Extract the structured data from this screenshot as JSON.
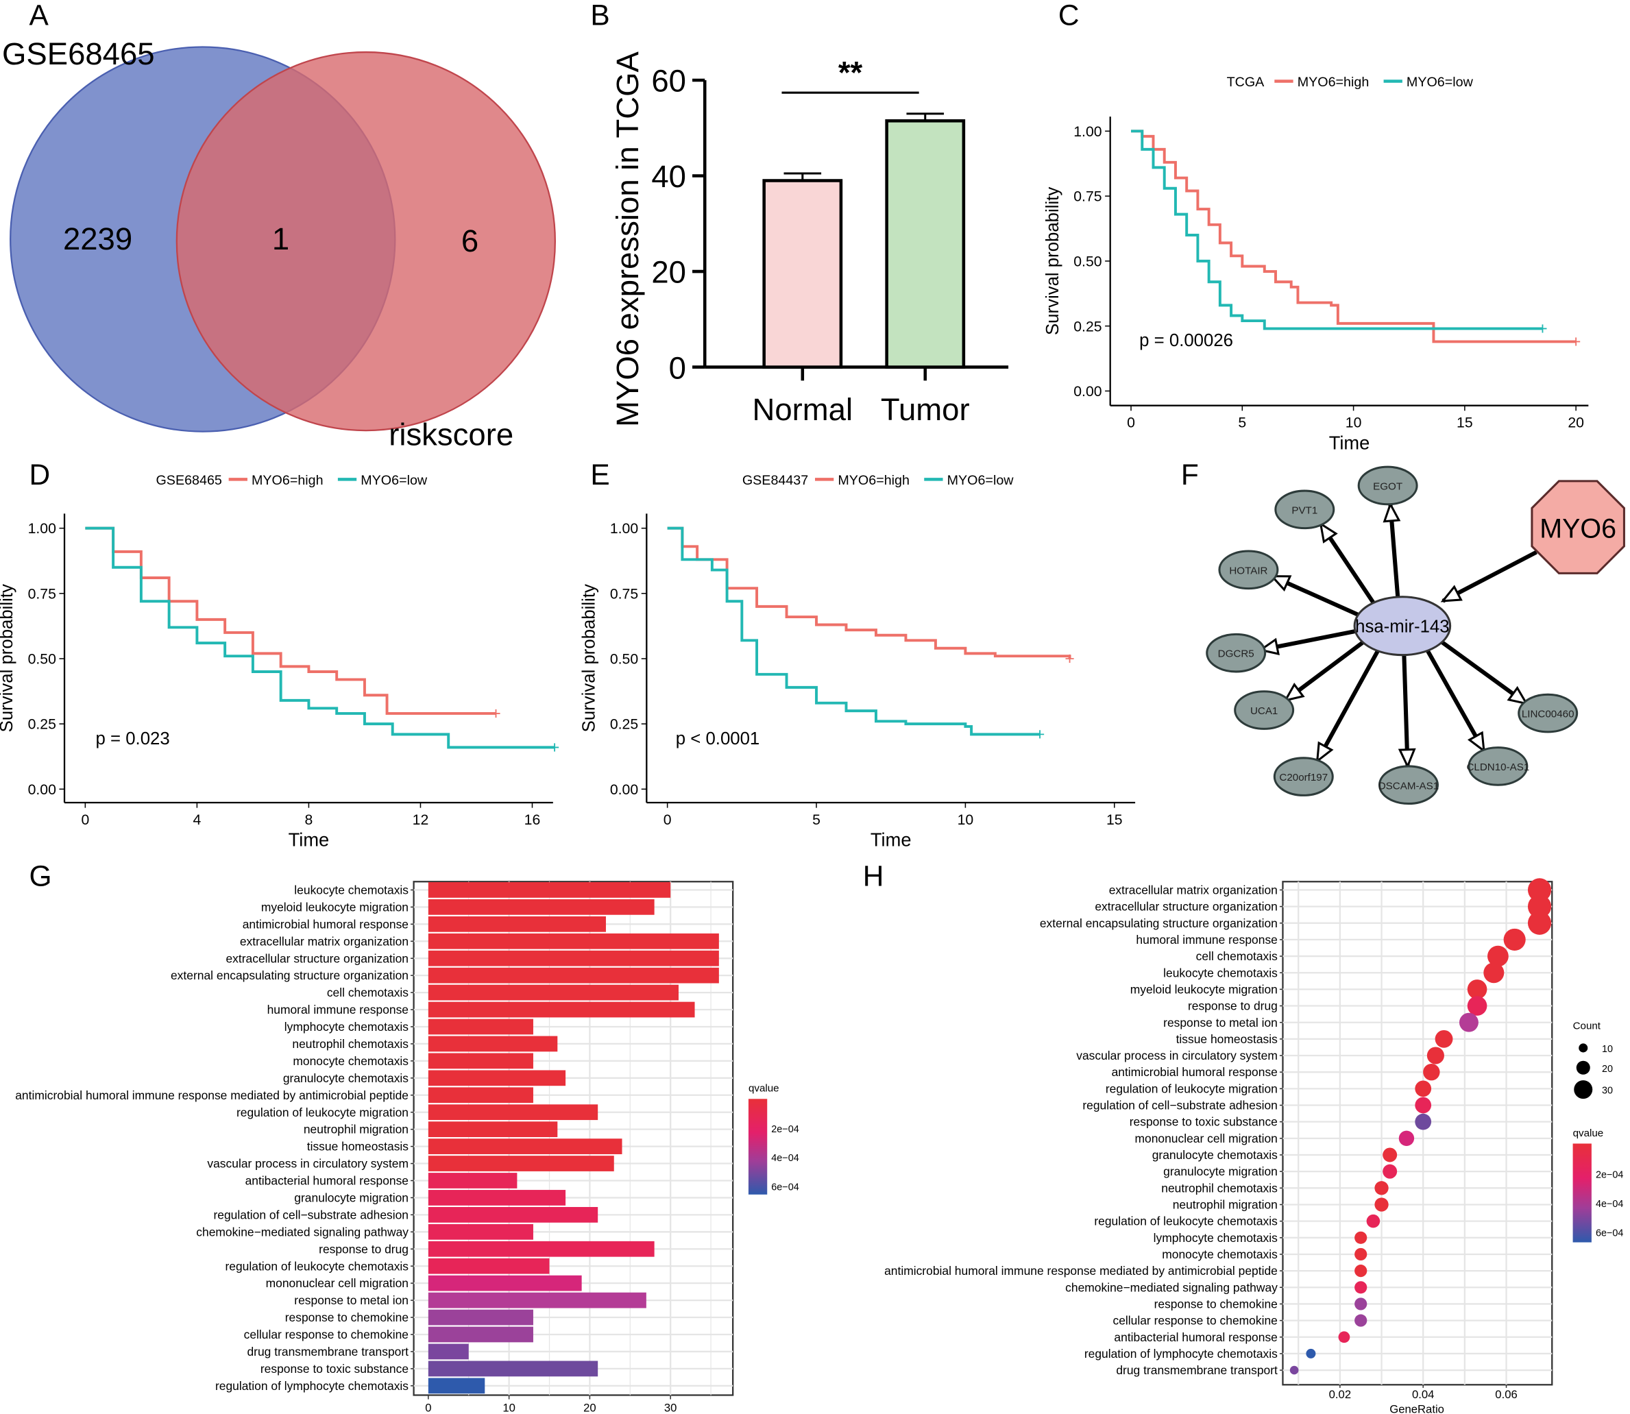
{
  "panel_labels": [
    "A",
    "B",
    "C",
    "D",
    "E",
    "F",
    "G",
    "H"
  ],
  "chart_data": [
    {
      "id": "A",
      "type": "venn",
      "sets": [
        {
          "name": "GSE68465",
          "only": 2239,
          "color": "#6a7fc4"
        },
        {
          "name": "riskscore",
          "only": 6,
          "color": "#d86a6e"
        }
      ],
      "intersection": 1
    },
    {
      "id": "B",
      "type": "bar",
      "ylabel": "MYO6 expression in TCGA",
      "categories": [
        "Normal",
        "Tumor"
      ],
      "values": [
        39,
        51.5
      ],
      "errors": [
        1.5,
        1.5
      ],
      "colors": [
        "#f9d6d6",
        "#c3e3bf"
      ],
      "ylim": [
        0,
        60
      ],
      "yticks": [
        "0",
        "20",
        "40",
        "60"
      ],
      "significance": "**"
    },
    {
      "id": "C",
      "type": "line",
      "subtype": "kaplan-meier",
      "legend_title": "TCGA",
      "series": [
        {
          "name": "MYO6=high",
          "color": "#ee7068",
          "points": [
            [
              0,
              1
            ],
            [
              0.5,
              0.98
            ],
            [
              1,
              0.93
            ],
            [
              1.5,
              0.88
            ],
            [
              2,
              0.82
            ],
            [
              2.5,
              0.77
            ],
            [
              3,
              0.7
            ],
            [
              3.5,
              0.64
            ],
            [
              4,
              0.57
            ],
            [
              4.5,
              0.52
            ],
            [
              5,
              0.48
            ],
            [
              6,
              0.46
            ],
            [
              6.5,
              0.42
            ],
            [
              7.2,
              0.4
            ],
            [
              7.5,
              0.34
            ],
            [
              9,
              0.33
            ],
            [
              9.3,
              0.26
            ],
            [
              13.6,
              0.26
            ],
            [
              13.6,
              0.19
            ],
            [
              20,
              0.19
            ]
          ]
        },
        {
          "name": "MYO6=low",
          "color": "#22b8b3",
          "points": [
            [
              0,
              1
            ],
            [
              0.5,
              0.93
            ],
            [
              1,
              0.86
            ],
            [
              1.5,
              0.78
            ],
            [
              2,
              0.68
            ],
            [
              2.5,
              0.6
            ],
            [
              3,
              0.5
            ],
            [
              3.5,
              0.42
            ],
            [
              4,
              0.33
            ],
            [
              4.5,
              0.29
            ],
            [
              5,
              0.27
            ],
            [
              6,
              0.24
            ],
            [
              18.5,
              0.24
            ]
          ]
        }
      ],
      "xlabel": "Time",
      "ylabel": "Survival probability",
      "xlim": [
        0,
        20
      ],
      "xticks": [
        "0",
        "5",
        "10",
        "15",
        "20"
      ],
      "ylim": [
        0,
        1
      ],
      "yticks": [
        "0.00",
        "0.25",
        "0.50",
        "0.75",
        "1.00"
      ],
      "pvalue": "p = 0.00026"
    },
    {
      "id": "D",
      "type": "line",
      "subtype": "kaplan-meier",
      "legend_title": "GSE68465",
      "series": [
        {
          "name": "MYO6=high",
          "color": "#ee7068",
          "points": [
            [
              0,
              1
            ],
            [
              1,
              0.91
            ],
            [
              2,
              0.81
            ],
            [
              3,
              0.72
            ],
            [
              4,
              0.65
            ],
            [
              5,
              0.6
            ],
            [
              6,
              0.52
            ],
            [
              7,
              0.47
            ],
            [
              8,
              0.45
            ],
            [
              9,
              0.42
            ],
            [
              10,
              0.36
            ],
            [
              10.8,
              0.29
            ],
            [
              14.7,
              0.29
            ]
          ]
        },
        {
          "name": "MYO6=low",
          "color": "#22b8b3",
          "points": [
            [
              0,
              1
            ],
            [
              1,
              0.85
            ],
            [
              2,
              0.72
            ],
            [
              3,
              0.62
            ],
            [
              4,
              0.56
            ],
            [
              5,
              0.51
            ],
            [
              6,
              0.45
            ],
            [
              7,
              0.34
            ],
            [
              8,
              0.31
            ],
            [
              9,
              0.29
            ],
            [
              10,
              0.25
            ],
            [
              11,
              0.21
            ],
            [
              13,
              0.21
            ],
            [
              13,
              0.16
            ],
            [
              16.8,
              0.16
            ]
          ]
        }
      ],
      "xlabel": "Time",
      "ylabel": "Survival probability",
      "xlim": [
        0,
        16
      ],
      "xticks": [
        "0",
        "4",
        "8",
        "12",
        "16"
      ],
      "ylim": [
        0,
        1
      ],
      "yticks": [
        "0.00",
        "0.25",
        "0.50",
        "0.75",
        "1.00"
      ],
      "pvalue": "p = 0.023"
    },
    {
      "id": "E",
      "type": "line",
      "subtype": "kaplan-meier",
      "legend_title": "GSE84437",
      "series": [
        {
          "name": "MYO6=high",
          "color": "#ee7068",
          "points": [
            [
              0,
              1
            ],
            [
              0.5,
              0.93
            ],
            [
              1,
              0.88
            ],
            [
              2,
              0.77
            ],
            [
              3,
              0.7
            ],
            [
              4,
              0.66
            ],
            [
              5,
              0.63
            ],
            [
              6,
              0.61
            ],
            [
              7,
              0.59
            ],
            [
              8,
              0.57
            ],
            [
              9,
              0.54
            ],
            [
              10,
              0.52
            ],
            [
              11,
              0.51
            ],
            [
              13.5,
              0.5
            ]
          ]
        },
        {
          "name": "MYO6=low",
          "color": "#22b8b3",
          "points": [
            [
              0,
              1
            ],
            [
              0.5,
              0.88
            ],
            [
              1.5,
              0.84
            ],
            [
              2,
              0.72
            ],
            [
              2.5,
              0.57
            ],
            [
              3,
              0.44
            ],
            [
              4,
              0.39
            ],
            [
              5,
              0.33
            ],
            [
              6,
              0.3
            ],
            [
              7,
              0.26
            ],
            [
              8,
              0.25
            ],
            [
              10,
              0.24
            ],
            [
              10.2,
              0.21
            ],
            [
              12.5,
              0.21
            ]
          ]
        }
      ],
      "xlabel": "Time",
      "ylabel": "Survival probability",
      "xlim": [
        0,
        15
      ],
      "xticks": [
        "0",
        "5",
        "10",
        "15"
      ],
      "ylim": [
        0,
        1
      ],
      "yticks": [
        "0.00",
        "0.25",
        "0.50",
        "0.75",
        "1.00"
      ],
      "pvalue": "p < 0.0001"
    },
    {
      "id": "F",
      "type": "network",
      "source": {
        "name": "MYO6",
        "color": "#f4aba5"
      },
      "hub": {
        "name": "hsa-mir-143",
        "color": "#c5c8e8"
      },
      "targets": [
        "EGOT",
        "PVT1",
        "HOTAIR",
        "DGCR5",
        "UCA1",
        "C20orf197",
        "DSCAM-AS1",
        "CLDN10-AS1",
        "LINC00460"
      ],
      "target_color": "#8e9e9c"
    },
    {
      "id": "G",
      "type": "bar",
      "orientation": "horizontal",
      "categories": [
        "leukocyte chemotaxis",
        "myeloid leukocyte migration",
        "antimicrobial humoral response",
        "extracellular matrix organization",
        "extracellular structure organization",
        "external encapsulating structure organization",
        "cell chemotaxis",
        "humoral immune response",
        "lymphocyte chemotaxis",
        "neutrophil chemotaxis",
        "monocyte chemotaxis",
        "granulocyte chemotaxis",
        "antimicrobial humoral immune response mediated by antimicrobial peptide",
        "regulation of leukocyte migration",
        "neutrophil migration",
        "tissue homeostasis",
        "vascular process in circulatory system",
        "antibacterial humoral response",
        "granulocyte migration",
        "regulation of cell−substrate adhesion",
        "chemokine−mediated signaling pathway",
        "response to drug",
        "regulation of leukocyte chemotaxis",
        "mononuclear cell migration",
        "response to metal ion",
        "response to chemokine",
        "cellular response to chemokine",
        "drug transmembrane transport",
        "response to toxic substance",
        "regulation of lymphocyte chemotaxis"
      ],
      "values": [
        30,
        28,
        22,
        36,
        36,
        36,
        31,
        33,
        13,
        16,
        13,
        17,
        13,
        21,
        16,
        24,
        23,
        11,
        17,
        21,
        13,
        28,
        15,
        19,
        27,
        13,
        13,
        5,
        21,
        7
      ],
      "colors": [
        "#e8303a",
        "#e8303a",
        "#e8303a",
        "#e8303a",
        "#e8303a",
        "#e8303a",
        "#e8303a",
        "#e8303a",
        "#e8303a",
        "#e8303a",
        "#e8303a",
        "#e8303a",
        "#e8303a",
        "#e8303a",
        "#e8303a",
        "#e8303a",
        "#e8303a",
        "#e72558",
        "#e72558",
        "#e72558",
        "#e72558",
        "#e72558",
        "#e72558",
        "#d6267a",
        "#b43c96",
        "#9b429a",
        "#9b429a",
        "#7a469e",
        "#6e4a9d",
        "#2e5aac"
      ],
      "xlim": [
        0,
        37
      ],
      "xticks": [
        "0",
        "10",
        "20",
        "30"
      ],
      "legend": {
        "title": "qvalue",
        "labels": [
          "2e−04",
          "4e−04",
          "6e−04"
        ]
      }
    },
    {
      "id": "H",
      "type": "scatter",
      "subtype": "dotplot",
      "categories": [
        "extracellular matrix organization",
        "extracellular structure organization",
        "external encapsulating structure organization",
        "humoral immune response",
        "cell chemotaxis",
        "leukocyte chemotaxis",
        "myeloid leukocyte migration",
        "response to drug",
        "response to metal ion",
        "tissue homeostasis",
        "vascular process in circulatory system",
        "antimicrobial humoral response",
        "regulation of leukocyte migration",
        "regulation of cell−substrate adhesion",
        "response to toxic substance",
        "mononuclear cell migration",
        "granulocyte chemotaxis",
        "granulocyte migration",
        "neutrophil chemotaxis",
        "neutrophil migration",
        "regulation of leukocyte chemotaxis",
        "lymphocyte chemotaxis",
        "monocyte chemotaxis",
        "antimicrobial humoral immune response mediated by antimicrobial peptide",
        "chemokine−mediated signaling pathway",
        "response to chemokine",
        "cellular response to chemokine",
        "antibacterial humoral response",
        "regulation of lymphocyte chemotaxis",
        "drug transmembrane transport"
      ],
      "gene_ratio": [
        0.068,
        0.068,
        0.068,
        0.062,
        0.058,
        0.057,
        0.053,
        0.053,
        0.051,
        0.045,
        0.043,
        0.042,
        0.04,
        0.04,
        0.04,
        0.036,
        0.032,
        0.032,
        0.03,
        0.03,
        0.028,
        0.025,
        0.025,
        0.025,
        0.025,
        0.025,
        0.025,
        0.021,
        0.013,
        0.009
      ],
      "counts": [
        36,
        36,
        36,
        33,
        31,
        30,
        28,
        28,
        27,
        24,
        23,
        22,
        21,
        21,
        21,
        19,
        17,
        17,
        16,
        16,
        15,
        13,
        13,
        13,
        13,
        13,
        13,
        11,
        7,
        5
      ],
      "colors": [
        "#e8303a",
        "#e8303a",
        "#e8303a",
        "#e8303a",
        "#e8303a",
        "#e8303a",
        "#e8303a",
        "#e72558",
        "#b43c96",
        "#e8303a",
        "#e8303a",
        "#e8303a",
        "#e8303a",
        "#e72558",
        "#6e4a9d",
        "#d6267a",
        "#e8303a",
        "#e72558",
        "#e8303a",
        "#e8303a",
        "#e72558",
        "#e8303a",
        "#e8303a",
        "#e8303a",
        "#e72558",
        "#9b429a",
        "#9b429a",
        "#e72558",
        "#2e5aac",
        "#7a469e"
      ],
      "xlabel": "GeneRatio",
      "xlim": [
        0.007,
        0.07
      ],
      "xticks": [
        "0.02",
        "0.04",
        "0.06"
      ],
      "size_legend": {
        "title": "Count",
        "labels": [
          "10",
          "20",
          "30"
        ]
      },
      "color_legend": {
        "title": "qvalue",
        "labels": [
          "2e−04",
          "4e−04",
          "6e−04"
        ]
      }
    }
  ]
}
